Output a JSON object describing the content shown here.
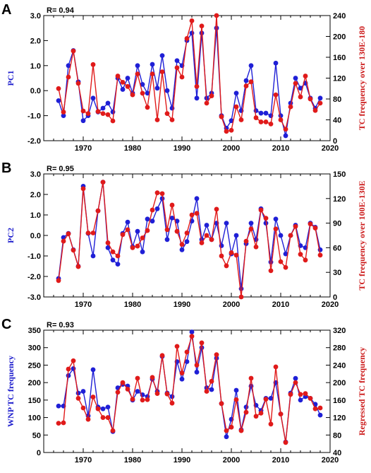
{
  "chart_data": [
    {
      "type": "line",
      "panel_label": "A",
      "annotation": "R= 0.94",
      "ylabel_left": "PC1",
      "ylabel_right": "TC frequency over 130E-180",
      "xlim": [
        1962,
        2020
      ],
      "xticks": [
        1970,
        1980,
        1990,
        2000,
        2010,
        2020
      ],
      "ylim_left": [
        -2.0,
        3.0
      ],
      "yticks_left": [
        "-2.0",
        "-1.0",
        "0.0",
        "1.0",
        "2.0",
        "3.0"
      ],
      "ylim_right": [
        0,
        240
      ],
      "yticks_right": [
        "0",
        "40",
        "80",
        "120",
        "160",
        "200",
        "240"
      ],
      "colors": {
        "left": "#1f1fd6",
        "right": "#e01a1a"
      },
      "x": [
        1965,
        1966,
        1967,
        1968,
        1969,
        1970,
        1971,
        1972,
        1973,
        1974,
        1975,
        1976,
        1977,
        1978,
        1979,
        1980,
        1981,
        1982,
        1983,
        1984,
        1985,
        1986,
        1987,
        1988,
        1989,
        1990,
        1991,
        1992,
        1993,
        1994,
        1995,
        1996,
        1997,
        1998,
        1999,
        2000,
        2001,
        2002,
        2003,
        2004,
        2005,
        2006,
        2007,
        2008,
        2009,
        2010,
        2011,
        2012,
        2013,
        2014,
        2015,
        2016,
        2017,
        2018
      ],
      "series": [
        {
          "axis": "left",
          "values": [
            -0.4,
            -1.0,
            1.0,
            1.6,
            0.35,
            -1.2,
            -1.0,
            -0.3,
            -0.85,
            -0.7,
            -0.5,
            -0.85,
            0.5,
            0.05,
            0.5,
            -0.1,
            1.0,
            0.25,
            -0.1,
            1.05,
            0.1,
            1.4,
            0.0,
            -0.7,
            1.2,
            1.0,
            2.0,
            2.3,
            -0.3,
            2.3,
            -0.3,
            -0.1,
            2.5,
            -1.0,
            -1.5,
            -1.2,
            -0.1,
            -0.8,
            0.4,
            1.0,
            -0.8,
            -0.9,
            -0.9,
            -1.0,
            1.1,
            -1.0,
            -1.8,
            -0.5,
            0.5,
            0.1,
            0.3,
            -0.3,
            -0.7,
            -0.3
          ]
        },
        {
          "axis": "right",
          "values": [
            100,
            55,
            122,
            172,
            110,
            57,
            52,
            146,
            56,
            52,
            50,
            38,
            124,
            112,
            104,
            88,
            128,
            91,
            64,
            128,
            40,
            132,
            52,
            40,
            140,
            122,
            196,
            230,
            104,
            220,
            72,
            86,
            240,
            46,
            18,
            20,
            65,
            40,
            105,
            113,
            44,
            36,
            36,
            32,
            88,
            40,
            22,
            65,
            110,
            84,
            124,
            80,
            58,
            72
          ]
        }
      ]
    },
    {
      "type": "line",
      "panel_label": "B",
      "annotation": "R= 0.95",
      "ylabel_left": "PC2",
      "ylabel_right": "TC frequency over 100E-130E",
      "xlim": [
        1962,
        2020
      ],
      "xticks": [
        1970,
        1980,
        1990,
        2000,
        2010,
        2020
      ],
      "ylim_left": [
        -3.0,
        3.0
      ],
      "yticks_left": [
        "-3.0",
        "-2.0",
        "-1.0",
        "0.0",
        "1.0",
        "2.0",
        "3.0"
      ],
      "ylim_right": [
        0,
        150
      ],
      "yticks_right": [
        "0",
        "30",
        "60",
        "90",
        "120",
        "150"
      ],
      "colors": {
        "left": "#1f1fd6",
        "right": "#e01a1a"
      },
      "x": [
        1965,
        1966,
        1967,
        1968,
        1969,
        1970,
        1971,
        1972,
        1973,
        1974,
        1975,
        1976,
        1977,
        1978,
        1979,
        1980,
        1981,
        1982,
        1983,
        1984,
        1985,
        1986,
        1987,
        1988,
        1989,
        1990,
        1991,
        1992,
        1993,
        1994,
        1995,
        1996,
        1997,
        1998,
        1999,
        2000,
        2001,
        2002,
        2003,
        2004,
        2005,
        2006,
        2007,
        2008,
        2009,
        2010,
        2011,
        2012,
        2013,
        2014,
        2015,
        2016,
        2017,
        2018
      ],
      "series": [
        {
          "axis": "left",
          "values": [
            -2.1,
            -0.1,
            0.1,
            -0.7,
            -1.5,
            2.4,
            0.1,
            -1.0,
            1.2,
            2.6,
            -0.6,
            -1.2,
            -1.4,
            0.1,
            0.65,
            -0.55,
            0.2,
            -0.8,
            0.8,
            0.7,
            1.3,
            1.8,
            -0.2,
            0.85,
            0.7,
            -0.7,
            -0.3,
            0.7,
            1.8,
            -0.2,
            0.5,
            -0.2,
            0.6,
            -0.5,
            0.6,
            -0.9,
            0.0,
            -2.6,
            -0.4,
            0.6,
            -0.2,
            1.3,
            0.6,
            -1.3,
            0.8,
            0.0,
            -0.9,
            0.0,
            0.5,
            -0.5,
            -0.6,
            0.6,
            0.4,
            -0.7
          ]
        },
        {
          "axis": "right",
          "values": [
            20,
            68,
            77,
            57,
            37,
            132,
            78,
            78,
            105,
            140,
            66,
            55,
            50,
            76,
            82,
            60,
            62,
            72,
            81,
            106,
            127,
            126,
            82,
            112,
            80,
            64,
            78,
            100,
            102,
            66,
            75,
            70,
            107,
            50,
            38,
            54,
            51,
            0,
            68,
            83,
            61,
            106,
            96,
            32,
            83,
            43,
            36,
            75,
            86,
            52,
            45,
            89,
            84,
            51
          ]
        }
      ]
    },
    {
      "type": "line",
      "panel_label": "C",
      "annotation": "R= 0.93",
      "ylabel_left": "WNP TC frequency",
      "ylabel_right": "Regressed TC frequency",
      "xlim": [
        1962,
        2020
      ],
      "xticks": [
        1970,
        1980,
        1990,
        2000,
        2010,
        2020
      ],
      "ylim_left": [
        0,
        350
      ],
      "yticks_left": [
        "0",
        "50",
        "100",
        "150",
        "200",
        "250",
        "300",
        "350"
      ],
      "ylim_right": [
        40,
        320
      ],
      "yticks_right": [
        "40",
        "80",
        "120",
        "160",
        "200",
        "240",
        "280",
        "320"
      ],
      "colors": {
        "left": "#1f1fd6",
        "right": "#e01a1a"
      },
      "x": [
        1965,
        1966,
        1967,
        1968,
        1969,
        1970,
        1971,
        1972,
        1973,
        1974,
        1975,
        1976,
        1977,
        1978,
        1979,
        1980,
        1981,
        1982,
        1983,
        1984,
        1985,
        1986,
        1987,
        1988,
        1989,
        1990,
        1991,
        1992,
        1993,
        1994,
        1995,
        1996,
        1997,
        1998,
        1999,
        2000,
        2001,
        2002,
        2003,
        2004,
        2005,
        2006,
        2007,
        2008,
        2009,
        2010,
        2011,
        2012,
        2013,
        2014,
        2015,
        2016,
        2017,
        2018
      ],
      "series": [
        {
          "axis": "left",
          "values": [
            133,
            133,
            220,
            240,
            170,
            175,
            105,
            237,
            130,
            125,
            130,
            60,
            185,
            195,
            190,
            150,
            175,
            165,
            160,
            210,
            175,
            275,
            170,
            160,
            260,
            210,
            260,
            345,
            230,
            300,
            185,
            180,
            270,
            140,
            45,
            95,
            178,
            65,
            130,
            190,
            135,
            120,
            155,
            155,
            200,
            110,
            30,
            170,
            212,
            150,
            160,
            155,
            138,
            107
          ]
        },
        {
          "axis": "right",
          "values": [
            107,
            108,
            231,
            250,
            164,
            142,
            116,
            167,
            140,
            120,
            120,
            90,
            178,
            200,
            185,
            162,
            210,
            160,
            161,
            212,
            175,
            262,
            174,
            153,
            283,
            222,
            270,
            306,
            240,
            291,
            180,
            203,
            264,
            152,
            90,
            98,
            161,
            90,
            132,
            210,
            123,
            130,
            162,
            105,
            236,
            128,
            63,
            173,
            200,
            173,
            175,
            164,
            140,
            142
          ]
        }
      ]
    }
  ]
}
